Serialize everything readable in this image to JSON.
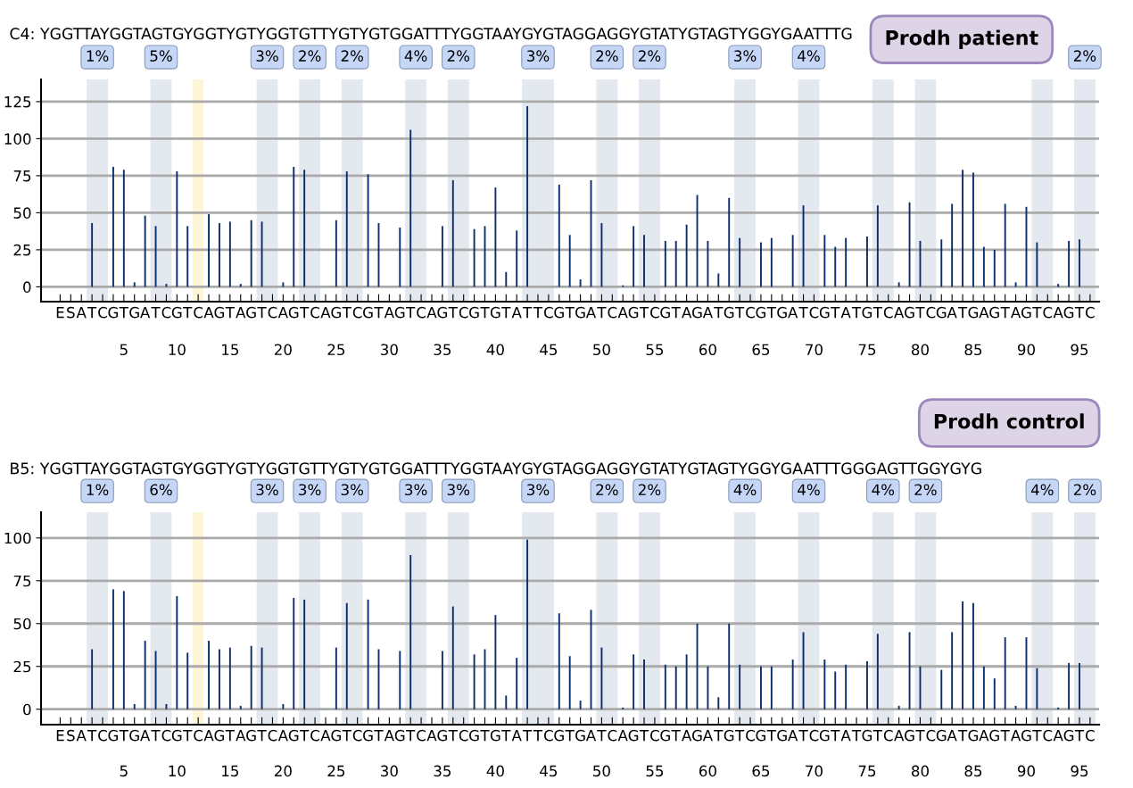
{
  "chart_data": [
    {
      "type": "bar",
      "title": "Prodh patient",
      "subtitle": "C4: YGGTTAYGGTAGTGYGGTYGTYGGTGTTYGTYGTGGATTTYGGTAAYGYGTAGGAGGYGTATYGTAGTYGGYGAATTTG",
      "categories": [
        "E",
        "S",
        "A",
        "T",
        "C",
        "G",
        "T",
        "G",
        "A",
        "T",
        "C",
        "G",
        "T",
        "C",
        "A",
        "G",
        "T",
        "A",
        "G",
        "T",
        "C",
        "A",
        "G",
        "T",
        "C",
        "A",
        "G",
        "T",
        "C",
        "G",
        "T",
        "A",
        "G",
        "T",
        "C",
        "A",
        "G",
        "T",
        "C",
        "G",
        "T",
        "G",
        "T",
        "A",
        "T",
        "T",
        "C",
        "G",
        "T",
        "G",
        "A",
        "T",
        "C",
        "A",
        "G",
        "T",
        "C",
        "G",
        "T",
        "A",
        "G",
        "A",
        "T",
        "G",
        "T",
        "C",
        "G",
        "T",
        "G",
        "A",
        "T",
        "C",
        "G",
        "T",
        "A",
        "T",
        "G",
        "T",
        "C",
        "A",
        "G",
        "T",
        "C",
        "G",
        "A",
        "T",
        "G",
        "A",
        "G",
        "T",
        "A",
        "G",
        "T",
        "C",
        "A",
        "G",
        "T",
        "C"
      ],
      "values": [
        null,
        null,
        0,
        43,
        0,
        81,
        79,
        3,
        48,
        41,
        2,
        78,
        41,
        0,
        49,
        43,
        44,
        2,
        45,
        44,
        0,
        3,
        81,
        79,
        0,
        0,
        45,
        78,
        0,
        76,
        43,
        0,
        40,
        106,
        0,
        0,
        41,
        72,
        0,
        39,
        41,
        67,
        10,
        38,
        122,
        0,
        0,
        69,
        35,
        5,
        72,
        43,
        0,
        1,
        41,
        35,
        0,
        31,
        31,
        42,
        62,
        31,
        9,
        60,
        33,
        0,
        30,
        33,
        0,
        35,
        55,
        0,
        35,
        27,
        33,
        0,
        34,
        55,
        0,
        3,
        57,
        31,
        0,
        32,
        56,
        79,
        77,
        27,
        25,
        56,
        3,
        54,
        30,
        0,
        2,
        31,
        32,
        0
      ],
      "color": "#0a2d6e",
      "ylim": [
        -10,
        140
      ],
      "yticks": [
        0,
        25,
        50,
        75,
        100,
        125
      ],
      "grid": "y",
      "x2lim": [
        -2.8,
        96.85
      ],
      "x2ticks": [
        5,
        10,
        15,
        20,
        25,
        30,
        35,
        40,
        45,
        50,
        55,
        60,
        65,
        70,
        75,
        80,
        85,
        90,
        95
      ],
      "bands": [
        {
          "axis": "x2",
          "from": 1.5,
          "to": 3.5,
          "label": "1%",
          "color": "#e4e8ef"
        },
        {
          "axis": "x2",
          "from": 7.5,
          "to": 9.5,
          "label": "5%",
          "color": "#e4e8ef"
        },
        {
          "axis": "x2",
          "from": 11.5,
          "to": 12.5,
          "label": null,
          "color": "#fdf5d6"
        },
        {
          "axis": "x2",
          "from": 17.5,
          "to": 19.5,
          "label": "3%",
          "color": "#e4e8ef"
        },
        {
          "axis": "x2",
          "from": 21.5,
          "to": 23.5,
          "label": "2%",
          "color": "#e4e8ef"
        },
        {
          "axis": "x2",
          "from": 25.5,
          "to": 27.5,
          "label": "2%",
          "color": "#e4e8ef"
        },
        {
          "axis": "x2",
          "from": 31.5,
          "to": 33.5,
          "label": "4%",
          "color": "#e4e8ef"
        },
        {
          "axis": "x2",
          "from": 35.5,
          "to": 37.5,
          "label": "2%",
          "color": "#e4e8ef"
        },
        {
          "axis": "x2",
          "from": 42.5,
          "to": 45.5,
          "label": "3%",
          "color": "#e4e8ef"
        },
        {
          "axis": "x2",
          "from": 49.5,
          "to": 51.5,
          "label": "2%",
          "color": "#e4e8ef"
        },
        {
          "axis": "x2",
          "from": 53.5,
          "to": 55.5,
          "label": "2%",
          "color": "#e4e8ef"
        },
        {
          "axis": "x2",
          "from": 62.5,
          "to": 64.5,
          "label": "3%",
          "color": "#e4e8ef"
        },
        {
          "axis": "x2",
          "from": 68.5,
          "to": 70.5,
          "label": "4%",
          "color": "#e4e8ef"
        },
        {
          "axis": "x2",
          "from": 75.5,
          "to": 77.5,
          "label": null,
          "color": "#e4e8ef"
        },
        {
          "axis": "x2",
          "from": 79.5,
          "to": 81.5,
          "label": null,
          "color": "#e4e8ef"
        },
        {
          "axis": "x2",
          "from": 90.5,
          "to": 92.5,
          "label": null,
          "color": "#e4e8ef"
        },
        {
          "axis": "x2",
          "from": 94.5,
          "to": 96.5,
          "label": "2%",
          "color": "#e4e8ef"
        }
      ]
    },
    {
      "type": "bar",
      "title": "Prodh control",
      "subtitle": "B5: YGGTTAYGGTAGTGYGGTYGTYGGTGTTYGTYGTGGATTTYGGTAAYGYGTAGGAGGYGTATYGTAGTYGGYGAATTTGGGAGTTGGYGYG",
      "categories": [
        "E",
        "S",
        "A",
        "T",
        "C",
        "G",
        "T",
        "G",
        "A",
        "T",
        "C",
        "G",
        "T",
        "C",
        "A",
        "G",
        "T",
        "A",
        "G",
        "T",
        "C",
        "A",
        "G",
        "T",
        "C",
        "A",
        "G",
        "T",
        "C",
        "G",
        "T",
        "A",
        "G",
        "T",
        "C",
        "A",
        "G",
        "T",
        "C",
        "G",
        "T",
        "G",
        "T",
        "A",
        "T",
        "T",
        "C",
        "G",
        "T",
        "G",
        "A",
        "T",
        "C",
        "A",
        "G",
        "T",
        "C",
        "G",
        "T",
        "A",
        "G",
        "A",
        "T",
        "G",
        "T",
        "C",
        "G",
        "T",
        "G",
        "A",
        "T",
        "C",
        "G",
        "T",
        "A",
        "T",
        "G",
        "T",
        "C",
        "A",
        "G",
        "T",
        "C",
        "G",
        "A",
        "T",
        "G",
        "A",
        "G",
        "T",
        "A",
        "G",
        "T",
        "C",
        "A",
        "G",
        "T",
        "C"
      ],
      "values": [
        null,
        null,
        0,
        35,
        0,
        70,
        69,
        3,
        40,
        34,
        3,
        66,
        33,
        0,
        40,
        35,
        36,
        2,
        37,
        36,
        0,
        3,
        65,
        64,
        0,
        0,
        36,
        62,
        0,
        64,
        35,
        0,
        34,
        90,
        0,
        0,
        34,
        60,
        0,
        32,
        35,
        55,
        8,
        30,
        99,
        0,
        0,
        56,
        31,
        5,
        58,
        36,
        0,
        1,
        32,
        29,
        0,
        26,
        25,
        32,
        50,
        25,
        7,
        50,
        26,
        0,
        25,
        25,
        0,
        29,
        45,
        0,
        29,
        22,
        26,
        0,
        28,
        44,
        0,
        2,
        45,
        25,
        0,
        23,
        45,
        63,
        62,
        25,
        18,
        42,
        2,
        42,
        24,
        0,
        1,
        27,
        27,
        0
      ],
      "color": "#0a2d6e",
      "ylim": [
        -9,
        115
      ],
      "yticks": [
        0,
        25,
        50,
        75,
        100
      ],
      "grid": "y",
      "x2lim": [
        -2.8,
        96.85
      ],
      "x2ticks": [
        5,
        10,
        15,
        20,
        25,
        30,
        35,
        40,
        45,
        50,
        55,
        60,
        65,
        70,
        75,
        80,
        85,
        90,
        95
      ],
      "bands": [
        {
          "axis": "x2",
          "from": 1.5,
          "to": 3.5,
          "label": "1%",
          "color": "#e4e8ef"
        },
        {
          "axis": "x2",
          "from": 7.5,
          "to": 9.5,
          "label": "6%",
          "color": "#e4e8ef"
        },
        {
          "axis": "x2",
          "from": 11.5,
          "to": 12.5,
          "label": null,
          "color": "#fdf5d6"
        },
        {
          "axis": "x2",
          "from": 17.5,
          "to": 19.5,
          "label": "3%",
          "color": "#e4e8ef"
        },
        {
          "axis": "x2",
          "from": 21.5,
          "to": 23.5,
          "label": "3%",
          "color": "#e4e8ef"
        },
        {
          "axis": "x2",
          "from": 25.5,
          "to": 27.5,
          "label": "3%",
          "color": "#e4e8ef"
        },
        {
          "axis": "x2",
          "from": 31.5,
          "to": 33.5,
          "label": "3%",
          "color": "#e4e8ef"
        },
        {
          "axis": "x2",
          "from": 35.5,
          "to": 37.5,
          "label": "3%",
          "color": "#e4e8ef"
        },
        {
          "axis": "x2",
          "from": 42.5,
          "to": 45.5,
          "label": "3%",
          "color": "#e4e8ef"
        },
        {
          "axis": "x2",
          "from": 49.5,
          "to": 51.5,
          "label": "2%",
          "color": "#e4e8ef"
        },
        {
          "axis": "x2",
          "from": 53.5,
          "to": 55.5,
          "label": "2%",
          "color": "#e4e8ef"
        },
        {
          "axis": "x2",
          "from": 62.5,
          "to": 64.5,
          "label": "4%",
          "color": "#e4e8ef"
        },
        {
          "axis": "x2",
          "from": 68.5,
          "to": 70.5,
          "label": "4%",
          "color": "#e4e8ef"
        },
        {
          "axis": "x2",
          "from": 75.5,
          "to": 77.5,
          "label": "4%",
          "color": "#e4e8ef"
        },
        {
          "axis": "x2",
          "from": 79.5,
          "to": 81.5,
          "label": "2%",
          "color": "#e4e8ef"
        },
        {
          "axis": "x2",
          "from": 90.5,
          "to": 92.5,
          "label": "4%",
          "color": "#e4e8ef"
        },
        {
          "axis": "x2",
          "from": 94.5,
          "to": 96.5,
          "label": "2%",
          "color": "#e4e8ef"
        }
      ]
    }
  ]
}
